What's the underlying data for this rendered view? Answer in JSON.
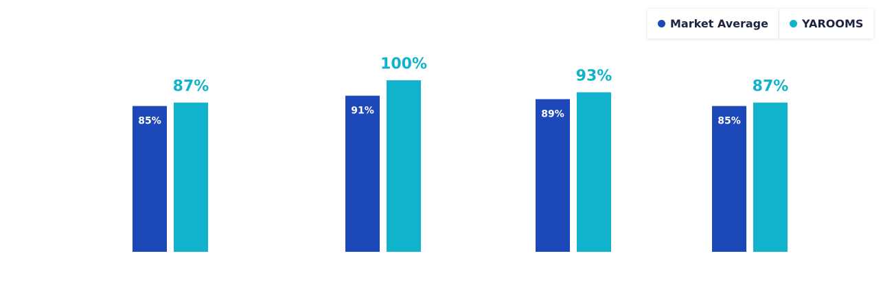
{
  "chart_data": {
    "type": "bar",
    "categories": [
      null,
      null,
      null,
      null
    ],
    "series": [
      {
        "name": "Market Average",
        "color": "#1c48b9",
        "values": [
          85,
          91,
          89,
          85
        ],
        "value_labels": [
          "85%",
          "91%",
          "89%",
          "85%"
        ]
      },
      {
        "name": "YAROOMS",
        "color": "#10b3cb",
        "values": [
          87,
          100,
          93,
          87
        ],
        "value_labels": [
          "87%",
          "100%",
          "93%",
          "87%"
        ]
      }
    ],
    "ylim": [
      0,
      100
    ],
    "legend": "top-right"
  }
}
